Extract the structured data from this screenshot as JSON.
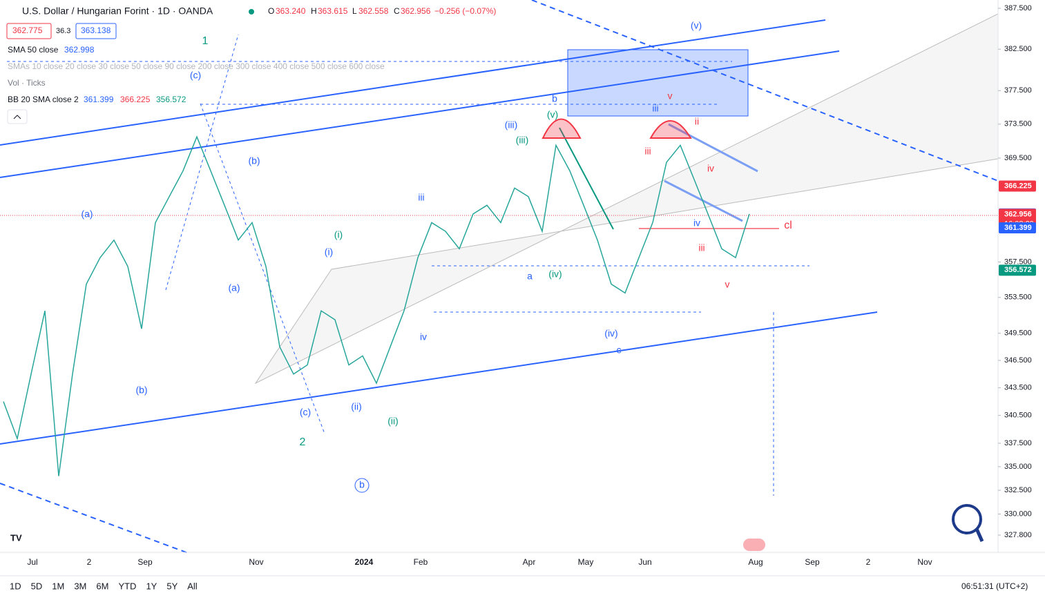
{
  "chart_data": {
    "type": "line",
    "log_scale": true,
    "header": {
      "symbol": "U.S. Dollar / Hungarian Forint · 1D · OANDA",
      "o_label": "O",
      "o": "363.240",
      "h_label": "H",
      "h": "363.615",
      "l_label": "L",
      "l": "362.558",
      "c_label": "C",
      "c": "362.956",
      "change": "−0.256 (−0.07%)",
      "bid": "362.775",
      "spread": "36.3",
      "ask": "363.138"
    },
    "indicators": {
      "sma50": "SMA 50 close",
      "sma50_value": "362.998",
      "smas": "SMAs 10 close 20 close 30 close 50 close 90 close 200 close 300 close 400 close 500 close 600 close",
      "vol": "Vol · Ticks",
      "bb": "BB 20 SMA close 2",
      "bb_mid": "361.399",
      "bb_up": "366.225",
      "bb_low": "356.572"
    },
    "categories": [
      null,
      null,
      null,
      null,
      null,
      null,
      null,
      null,
      null,
      null,
      null,
      null,
      null,
      null,
      null,
      null,
      null,
      null,
      null,
      null,
      null,
      null,
      null,
      null,
      null,
      null,
      null,
      null,
      null,
      null,
      null,
      null,
      null,
      null,
      null,
      null,
      null,
      null,
      null,
      null,
      null,
      null,
      null,
      null,
      null,
      null,
      null,
      null,
      null,
      null,
      null,
      null,
      null,
      null,
      null
    ],
    "series": [
      {
        "name": null,
        "color": "#26a69a",
        "values": [
          342,
          338,
          345,
          352,
          334,
          345,
          355,
          358,
          360,
          357,
          350,
          362,
          365,
          368,
          372,
          368,
          364,
          360,
          362,
          357,
          348,
          345,
          346,
          352,
          351,
          346,
          347,
          344,
          348,
          352,
          358,
          362,
          361,
          359,
          363,
          364,
          362,
          366,
          365,
          361,
          371,
          368,
          364,
          360,
          355,
          354,
          358,
          362,
          369,
          371,
          367,
          363,
          359,
          358,
          363
        ]
      }
    ],
    "x_labels": [
      "Jul",
      "2",
      "Sep",
      "Nov",
      "2024",
      "Feb",
      "Apr",
      "May",
      "Jun",
      "Aug",
      "Sep",
      "2",
      "Nov"
    ],
    "ylim": [
      327.8,
      387.5
    ],
    "yticks": [
      {
        "value": 387.5,
        "label": "387.500"
      },
      {
        "value": 382.5,
        "label": "382.500"
      },
      {
        "value": 377.5,
        "label": "377.500"
      },
      {
        "value": 373.5,
        "label": "373.500"
      },
      {
        "value": 369.5,
        "label": "369.500"
      },
      {
        "value": 357.5,
        "label": "357.500"
      },
      {
        "value": 353.5,
        "label": "353.500"
      },
      {
        "value": 349.5,
        "label": "349.500"
      },
      {
        "value": 346.5,
        "label": "346.500"
      },
      {
        "value": 343.5,
        "label": "343.500"
      },
      {
        "value": 340.5,
        "label": "340.500"
      },
      {
        "value": 337.5,
        "label": "337.500"
      },
      {
        "value": 335,
        "label": "335.000"
      },
      {
        "value": 332.5,
        "label": "332.500"
      },
      {
        "value": 330,
        "label": "330.000"
      },
      {
        "value": 327.8,
        "label": "327.800"
      }
    ],
    "price_badges": [
      {
        "value": 366.225,
        "label": "366.225",
        "color": "#f23645"
      },
      {
        "value": 362.998,
        "label": "362.998",
        "color": "#2962ff"
      },
      {
        "value": 362.956,
        "label": "362.956",
        "color": "#f23645"
      },
      {
        "value": 361.399,
        "label": "361.399",
        "color": "#2962ff"
      },
      {
        "value": 356.572,
        "label": "356.572",
        "color": "#089981"
      }
    ],
    "countdown": "16:08:29",
    "annotations": [
      {
        "text": "1",
        "color": "#089981"
      },
      {
        "text": "(c)",
        "color": "#2962ff"
      },
      {
        "text": "(a)",
        "color": "#2962ff"
      },
      {
        "text": "(b)",
        "color": "#2962ff"
      },
      {
        "text": "(a)",
        "color": "#2962ff"
      },
      {
        "text": "(b)",
        "color": "#2962ff"
      },
      {
        "text": "(c)",
        "color": "#2962ff"
      },
      {
        "text": "2",
        "color": "#089981"
      },
      {
        "text": "(i)",
        "color": "#089981"
      },
      {
        "text": "(i)",
        "color": "#2962ff"
      },
      {
        "text": "(ii)",
        "color": "#2962ff"
      },
      {
        "text": "(ii)",
        "color": "#089981"
      },
      {
        "text": "iii",
        "color": "#2962ff"
      },
      {
        "text": "iv",
        "color": "#2962ff"
      },
      {
        "text": "(iii)",
        "color": "#2962ff"
      },
      {
        "text": "(iii)",
        "color": "#089981"
      },
      {
        "text": "(v)",
        "color": "#089981"
      },
      {
        "text": "b",
        "color": "#2962ff"
      },
      {
        "text": "a",
        "color": "#2962ff"
      },
      {
        "text": "(iv)",
        "color": "#089981"
      },
      {
        "text": "(iv)",
        "color": "#2962ff"
      },
      {
        "text": "c",
        "color": "#2962ff"
      },
      {
        "text": "iii",
        "color": "#2962ff"
      },
      {
        "text": "v",
        "color": "#f23645"
      },
      {
        "text": "ii",
        "color": "#f23645"
      },
      {
        "text": "iii",
        "color": "#f23645"
      },
      {
        "text": "iv",
        "color": "#f23645"
      },
      {
        "text": "iv",
        "color": "#2962ff"
      },
      {
        "text": "iii",
        "color": "#f23645"
      },
      {
        "text": "v",
        "color": "#f23645"
      },
      {
        "text": "cl",
        "color": "#f23645"
      },
      {
        "text": "(v)",
        "color": "#2962ff"
      },
      {
        "text": "b",
        "color": "#2962ff"
      }
    ],
    "toolbar": [
      "1D",
      "5D",
      "1M",
      "3M",
      "6M",
      "YTD",
      "1Y",
      "5Y",
      "All"
    ],
    "clock": "06:51:31 (UTC+2)"
  }
}
